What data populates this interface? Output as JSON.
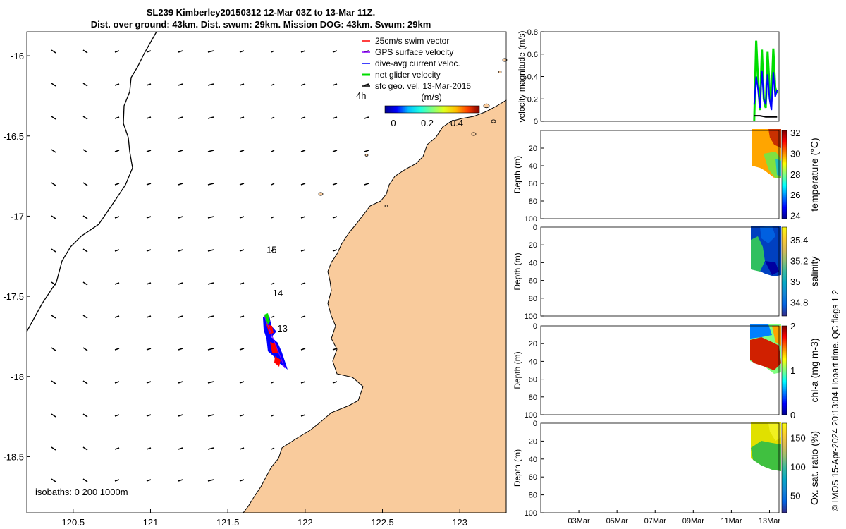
{
  "header": {
    "title_line1": "SL239 Kimberley20150312 12-Mar 03Z to 13-Mar 11Z.",
    "title_line2": "Dist. over ground: 43km. Dist. swum: 29km. Mission DOG: 43km. Swum: 29km"
  },
  "credit": "© IMOS 15-Apr-2024 20:13:04 Hobart time. QC flags 1  2",
  "colors": {
    "land": "#f9cb9c",
    "swim": "#ff0000",
    "gps": "#8b00ff",
    "current": "#0000ff",
    "net": "#00dd00",
    "sfc": "#000000"
  },
  "chart_data": [
    {
      "type": "map",
      "x_ticks": [
        "120.5",
        "121",
        "121.5",
        "122",
        "122.5",
        "123"
      ],
      "y_ticks": [
        "-16",
        "-16.5",
        "-17",
        "-17.5",
        "-18",
        "-18.5"
      ],
      "xlim": [
        120.2,
        123.3
      ],
      "ylim": [
        -18.85,
        -15.85
      ],
      "legend": [
        {
          "label": "25cm/s swim vector",
          "color": "#ff0000"
        },
        {
          "label": "GPS surface velocity",
          "color": "#8b00ff"
        },
        {
          "label": "dive-avg current veloc.",
          "color": "#0000ff"
        },
        {
          "label": "net glider velocity",
          "color": "#00dd00"
        },
        {
          "label": "sfc geo. vel. 13-Mar-2015",
          "color": "#000000"
        }
      ],
      "colorbar_title": "(m/s)",
      "colorbar_ticks": [
        "0",
        "0.2",
        "0.4"
      ],
      "annotation_4h": "4h",
      "track_labels": [
        {
          "text": "15",
          "lon": 121.75,
          "lat": -17.23
        },
        {
          "text": "14",
          "lon": 121.79,
          "lat": -17.5
        },
        {
          "text": "13",
          "lon": 121.82,
          "lat": -17.72
        }
      ],
      "isobath_note": "isobaths: 0   200  1000m"
    },
    {
      "type": "line",
      "ylabel": "velocity magnitude (m/s)",
      "y_ticks": [
        "0",
        "0.2",
        "0.4",
        "0.6",
        "0.8"
      ],
      "ylim": [
        0,
        0.8
      ],
      "xlim": [
        1,
        13.5
      ],
      "series": [
        {
          "name": "net glider velocity",
          "color": "#00dd00",
          "x": [
            12.2,
            12.3,
            12.4,
            12.5,
            12.6,
            12.7,
            12.8,
            12.9,
            13.0,
            13.1,
            13.2,
            13.3,
            13.4
          ],
          "values": [
            0.0,
            0.72,
            0.35,
            0.1,
            0.64,
            0.2,
            0.12,
            0.62,
            0.3,
            0.18,
            0.65,
            0.3,
            0.25
          ]
        },
        {
          "name": "dive-avg current veloc.",
          "color": "#0000ff",
          "x": [
            12.2,
            12.3,
            12.4,
            12.5,
            12.6,
            12.7,
            12.8,
            12.9,
            13.0,
            13.1,
            13.2,
            13.3,
            13.4
          ],
          "values": [
            0.15,
            0.4,
            0.28,
            0.12,
            0.45,
            0.2,
            0.15,
            0.42,
            0.2,
            0.1,
            0.44,
            0.22,
            0.28
          ]
        },
        {
          "name": "sfc geo. vel.",
          "color": "#000000",
          "x": [
            12.2,
            12.5,
            12.8,
            13.1,
            13.4
          ],
          "values": [
            0.05,
            0.05,
            0.04,
            0.04,
            0.04
          ]
        }
      ]
    },
    {
      "type": "heatmap",
      "ylabel": "Depth (m)",
      "colorbar_label": "temperature (°C)",
      "depth_ticks": [
        "20",
        "40",
        "60",
        "80",
        "100"
      ],
      "top_tick": "",
      "cb_ticks": [
        "24",
        "26",
        "28",
        "30",
        "32"
      ],
      "cb_range": [
        23.7,
        32.2
      ]
    },
    {
      "type": "heatmap",
      "ylabel": "Depth (m)",
      "colorbar_label": "salinity",
      "depth_ticks": [
        "20",
        "40",
        "60",
        "80",
        "100"
      ],
      "top_tick": "0",
      "cb_ticks": [
        "34.8",
        "35",
        "35.2",
        "35.4"
      ],
      "cb_range": [
        34.67,
        35.52
      ]
    },
    {
      "type": "heatmap",
      "ylabel": "Depth (m)",
      "colorbar_label": "chl-a (mg m-3)",
      "depth_ticks": [
        "20",
        "40",
        "60",
        "80",
        "100"
      ],
      "top_tick": "0",
      "cb_ticks": [
        "0",
        "1",
        "2"
      ],
      "cb_range": [
        0,
        2
      ]
    },
    {
      "type": "heatmap",
      "ylabel": "Depth (m)",
      "colorbar_label": "Ox. sat. ratio (%)",
      "depth_ticks": [
        "20",
        "40",
        "60",
        "80",
        "100"
      ],
      "top_tick": "0",
      "cb_ticks": [
        "50",
        "100",
        "150"
      ],
      "cb_range": [
        20,
        175
      ],
      "x_ticks": [
        "03Mar",
        "05Mar",
        "07Mar",
        "09Mar",
        "11Mar",
        "13Mar"
      ],
      "x_tick_days": [
        3,
        5,
        7,
        9,
        11,
        13
      ]
    }
  ]
}
